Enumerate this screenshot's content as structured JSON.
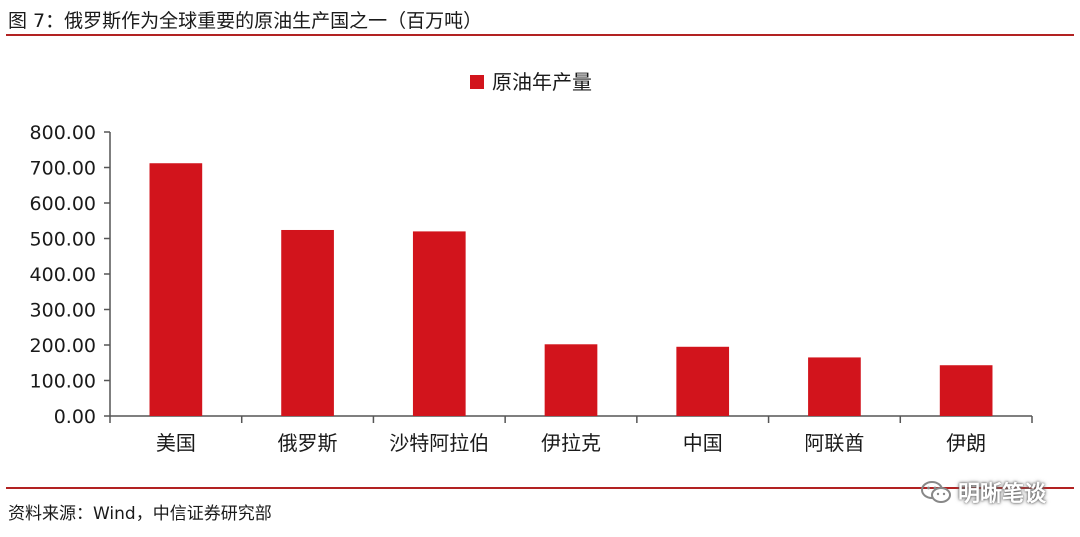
{
  "figure": {
    "title": "图 7：俄罗斯作为全球重要的原油生产国之一（百万吨）",
    "source": "资料来源：Wind，中信证券研究部",
    "watermark": "明晰笔谈",
    "watermark_icon": "wechat-icon"
  },
  "colors": {
    "bar": "#d2141c",
    "rule": "#b22222",
    "axis": "#555555"
  },
  "chart_data": {
    "type": "bar",
    "title": "",
    "xlabel": "",
    "ylabel": "",
    "categories": [
      "美国",
      "俄罗斯",
      "沙特阿拉伯",
      "伊拉克",
      "中国",
      "阿联酋",
      "伊朗"
    ],
    "series": [
      {
        "name": "原油年产量",
        "values": [
          712,
          524,
          520,
          202,
          195,
          165,
          143
        ]
      }
    ],
    "ylim": [
      0,
      800
    ],
    "yticks": [
      "0.00",
      "100.00",
      "200.00",
      "300.00",
      "400.00",
      "500.00",
      "600.00",
      "700.00",
      "800.00"
    ],
    "grid": false,
    "legend_position": "top-center"
  }
}
